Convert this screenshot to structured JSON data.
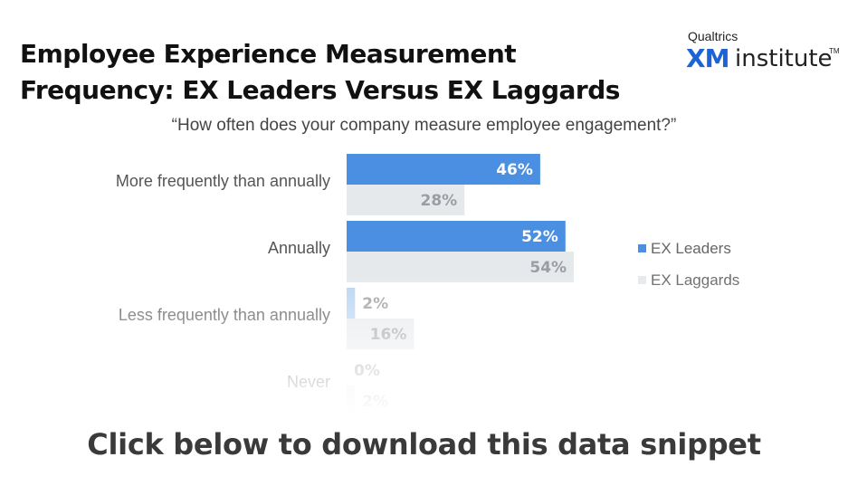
{
  "header": {
    "title_line1": "Employee Experience Measurement",
    "title_line2": "Frequency: EX Leaders Versus EX Laggards",
    "subtitle": "“How often does your company measure employee engagement?”"
  },
  "logo": {
    "brand": "Qualtrics",
    "xm": "XM",
    "institute": "institute",
    "tm": "TM"
  },
  "colors": {
    "leaders": "#4a8fe2",
    "leaders_light": "#b9d3f3",
    "laggards": "#e6e9ec",
    "leaders_label": "#ffffff",
    "laggards_label": "#9a9ea3",
    "category_text": "#555555",
    "legend_text": "#666666"
  },
  "chart_data": {
    "type": "bar",
    "orientation": "horizontal",
    "title": "“How often does your company measure employee engagement?”",
    "categories": [
      "More frequently than annually",
      "Annually",
      "Less frequently than annually",
      "Never"
    ],
    "series": [
      {
        "name": "EX Leaders",
        "values": [
          46,
          52,
          2,
          0
        ],
        "labels": [
          "46%",
          "52%",
          "2%",
          "0%"
        ]
      },
      {
        "name": "EX Laggards",
        "values": [
          28,
          54,
          16,
          2
        ],
        "labels": [
          "28%",
          "54%",
          "16%",
          "2%"
        ]
      }
    ],
    "xlim": [
      0,
      100
    ],
    "grid": false,
    "legend_position": "right"
  },
  "cta": {
    "text": "Click below to download this data snippet"
  }
}
